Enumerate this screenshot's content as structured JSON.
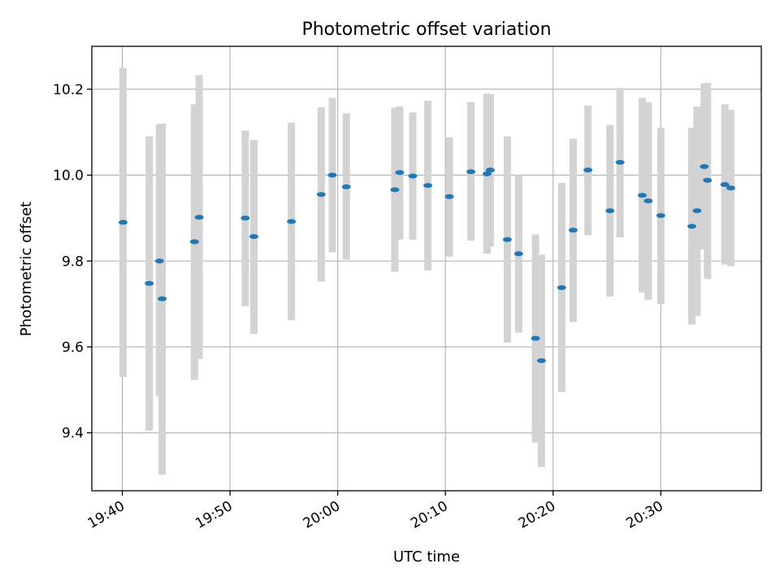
{
  "chart_data": {
    "type": "scatter",
    "title": "Photometric offset variation",
    "xlabel": "UTC time",
    "ylabel": "Photometric offset",
    "xlim": [
      "19:37:10",
      "20:39:20"
    ],
    "ylim": [
      9.265,
      10.3
    ],
    "grid": true,
    "x_tick_labels": [
      "19:40",
      "19:50",
      "20:00",
      "20:10",
      "20:20",
      "20:30"
    ],
    "y_tick_labels": [
      "9.4",
      "9.6",
      "9.8",
      "10.0",
      "10.2"
    ],
    "y_ticks": [
      9.4,
      9.6,
      9.8,
      10.0,
      10.2
    ],
    "colors": {
      "marker": "#1f77b4",
      "errorbar": "#d3d3d3"
    },
    "series": [
      {
        "points": [
          {
            "x": "19:40:04",
            "y": 9.89,
            "ylow": 9.53,
            "yhigh": 10.25
          },
          {
            "x": "19:42:30",
            "y": 9.748,
            "ylow": 9.405,
            "yhigh": 10.09
          },
          {
            "x": "19:43:27",
            "y": 9.8,
            "ylow": 9.485,
            "yhigh": 10.118
          },
          {
            "x": "19:43:42",
            "y": 9.712,
            "ylow": 9.302,
            "yhigh": 10.12
          },
          {
            "x": "19:46:42",
            "y": 9.845,
            "ylow": 9.523,
            "yhigh": 10.165
          },
          {
            "x": "19:47:08",
            "y": 9.902,
            "ylow": 9.572,
            "yhigh": 10.233
          },
          {
            "x": "19:51:25",
            "y": 9.9,
            "ylow": 9.695,
            "yhigh": 10.104
          },
          {
            "x": "19:52:13",
            "y": 9.857,
            "ylow": 9.63,
            "yhigh": 10.082
          },
          {
            "x": "19:55:42",
            "y": 9.892,
            "ylow": 9.662,
            "yhigh": 10.122
          },
          {
            "x": "19:58:28",
            "y": 9.955,
            "ylow": 9.752,
            "yhigh": 10.158
          },
          {
            "x": "19:59:30",
            "y": 10.0,
            "ylow": 9.82,
            "yhigh": 10.18
          },
          {
            "x": "20:00:48",
            "y": 9.973,
            "ylow": 9.803,
            "yhigh": 10.144
          },
          {
            "x": "20:05:18",
            "y": 9.966,
            "ylow": 9.775,
            "yhigh": 10.157
          },
          {
            "x": "20:05:45",
            "y": 10.006,
            "ylow": 9.85,
            "yhigh": 10.16
          },
          {
            "x": "20:06:58",
            "y": 9.998,
            "ylow": 9.85,
            "yhigh": 10.146
          },
          {
            "x": "20:08:22",
            "y": 9.976,
            "ylow": 9.778,
            "yhigh": 10.173
          },
          {
            "x": "20:10:22",
            "y": 9.95,
            "ylow": 9.81,
            "yhigh": 10.088
          },
          {
            "x": "20:12:22",
            "y": 10.008,
            "ylow": 9.847,
            "yhigh": 10.17
          },
          {
            "x": "20:13:52",
            "y": 10.003,
            "ylow": 9.817,
            "yhigh": 10.19
          },
          {
            "x": "20:14:10",
            "y": 10.012,
            "ylow": 9.833,
            "yhigh": 10.188
          },
          {
            "x": "20:15:45",
            "y": 9.85,
            "ylow": 9.61,
            "yhigh": 10.09
          },
          {
            "x": "20:16:48",
            "y": 9.817,
            "ylow": 9.633,
            "yhigh": 10.0
          },
          {
            "x": "20:18:22",
            "y": 9.62,
            "ylow": 9.377,
            "yhigh": 9.862
          },
          {
            "x": "20:18:55",
            "y": 9.568,
            "ylow": 9.32,
            "yhigh": 9.815
          },
          {
            "x": "20:20:48",
            "y": 9.738,
            "ylow": 9.495,
            "yhigh": 9.982
          },
          {
            "x": "20:21:52",
            "y": 9.872,
            "ylow": 9.658,
            "yhigh": 10.085
          },
          {
            "x": "20:23:14",
            "y": 10.012,
            "ylow": 9.86,
            "yhigh": 10.162
          },
          {
            "x": "20:25:17",
            "y": 9.917,
            "ylow": 9.717,
            "yhigh": 10.117
          },
          {
            "x": "20:26:13",
            "y": 10.03,
            "ylow": 9.855,
            "yhigh": 10.203
          },
          {
            "x": "20:28:17",
            "y": 9.953,
            "ylow": 9.727,
            "yhigh": 10.18
          },
          {
            "x": "20:28:50",
            "y": 9.94,
            "ylow": 9.71,
            "yhigh": 10.17
          },
          {
            "x": "20:30:00",
            "y": 9.906,
            "ylow": 9.7,
            "yhigh": 10.11
          },
          {
            "x": "20:32:53",
            "y": 9.881,
            "ylow": 9.652,
            "yhigh": 10.11
          },
          {
            "x": "20:33:22",
            "y": 9.917,
            "ylow": 9.672,
            "yhigh": 10.16
          },
          {
            "x": "20:34:02",
            "y": 10.02,
            "ylow": 9.827,
            "yhigh": 10.213
          },
          {
            "x": "20:34:20",
            "y": 9.988,
            "ylow": 9.758,
            "yhigh": 10.215
          },
          {
            "x": "20:35:57",
            "y": 9.978,
            "ylow": 9.792,
            "yhigh": 10.165
          },
          {
            "x": "20:36:30",
            "y": 9.97,
            "ylow": 9.788,
            "yhigh": 10.152
          }
        ]
      }
    ]
  }
}
